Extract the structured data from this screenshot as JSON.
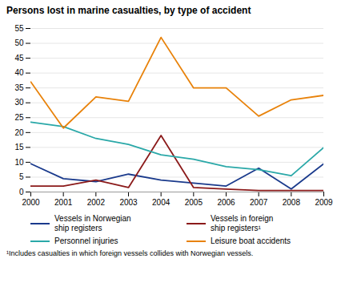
{
  "chart_data": {
    "type": "line",
    "title": "Persons lost in marine casualties, by type of accident",
    "x": [
      2000,
      2001,
      2002,
      2003,
      2004,
      2005,
      2006,
      2007,
      2008,
      2009
    ],
    "series": [
      {
        "name": "Vessels in Norwegian\nship registers",
        "color": "#1a3a8c",
        "values": [
          9.5,
          4.5,
          3.5,
          6,
          4,
          3,
          2,
          8,
          1,
          9.5
        ]
      },
      {
        "name": "Vessels in foreign\nship registers¹",
        "color": "#8b1a1a",
        "values": [
          2,
          2,
          4,
          1.5,
          19,
          1.5,
          1,
          0.5,
          0.5,
          0.5
        ]
      },
      {
        "name": "Personnel injuries",
        "color": "#2aa8a8",
        "values": [
          23.5,
          22,
          18,
          16,
          12.5,
          11,
          8.5,
          7.5,
          5.5,
          15
        ]
      },
      {
        "name": "Leisure boat accidents",
        "color": "#e8820a",
        "values": [
          37,
          21.5,
          32,
          30.5,
          52,
          35,
          35,
          25.5,
          31,
          32.5
        ]
      }
    ],
    "xlim": [
      2000,
      2009
    ],
    "xticks": [
      2000,
      2001,
      2002,
      2003,
      2004,
      2005,
      2006,
      2007,
      2008,
      2009
    ],
    "ylim": [
      0,
      55
    ],
    "yticks": [
      0,
      5,
      10,
      15,
      20,
      25,
      30,
      35,
      40,
      45,
      50,
      55
    ],
    "grid": true,
    "legend": "bottom",
    "footnote": "¹Includes casualties in which foreign vessels collides with Norwegian vessels."
  }
}
